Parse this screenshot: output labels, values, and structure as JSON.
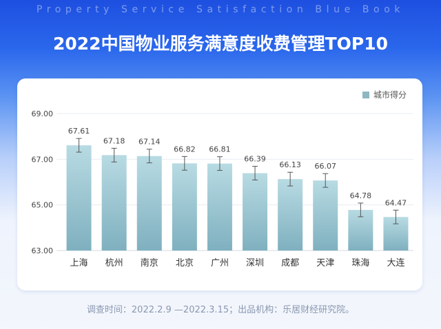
{
  "header": {
    "subtitle_en": "Property Service Satisfaction Blue Book",
    "title": "2022中国物业服务满意度收费管理TOP10"
  },
  "footer": {
    "note": "调查时间：2022.2.9 —2022.3.15；出品机构：乐居财经研究院。"
  },
  "colors": {
    "bar_top": "#b8dbe3",
    "bar_bottom": "#7fb0bf",
    "legend": "#8fb7c3",
    "error_bar": "#555555"
  },
  "chart_data": {
    "type": "bar",
    "categories": [
      "上海",
      "杭州",
      "南京",
      "北京",
      "广州",
      "深圳",
      "成都",
      "天津",
      "珠海",
      "大连"
    ],
    "series": [
      {
        "name": "城市得分",
        "values": [
          67.61,
          67.18,
          67.14,
          66.82,
          66.81,
          66.39,
          66.13,
          66.07,
          64.78,
          64.47
        ]
      }
    ],
    "data_labels": [
      "67.61",
      "67.18",
      "67.14",
      "66.82",
      "66.81",
      "66.39",
      "66.13",
      "66.07",
      "64.78",
      "64.47"
    ],
    "error_margin": 0.3,
    "yticks": [
      "69.00",
      "67.00",
      "65.00",
      "63.00"
    ],
    "ylim": [
      63,
      69
    ],
    "grid": true,
    "legend_position": "top-right"
  }
}
